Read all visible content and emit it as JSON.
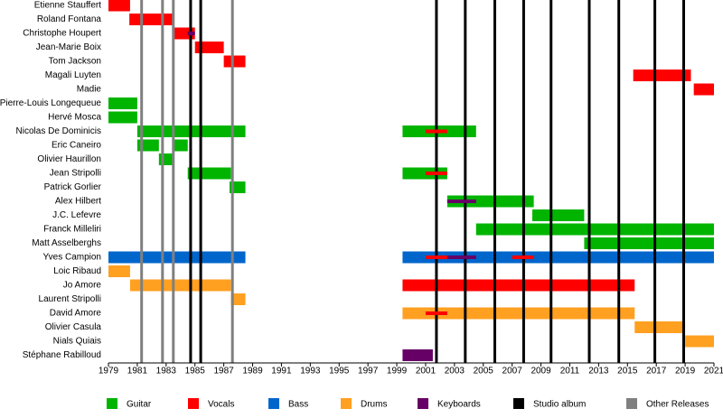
{
  "chart_data": {
    "type": "timeline",
    "xlim": [
      1979,
      2021
    ],
    "xticks": [
      1979,
      1981,
      1983,
      1985,
      1987,
      1989,
      1991,
      1993,
      1995,
      1997,
      1999,
      2001,
      2003,
      2005,
      2007,
      2009,
      2011,
      2013,
      2015,
      2017,
      2019,
      2021
    ],
    "legend": [
      {
        "name": "Guitar",
        "color": "#00b400"
      },
      {
        "name": "Vocals",
        "color": "#ff0000"
      },
      {
        "name": "Bass",
        "color": "#0066cc"
      },
      {
        "name": "Drums",
        "color": "#ffa020"
      },
      {
        "name": "Keyboards",
        "color": "#660066"
      },
      {
        "name": "Studio album",
        "color": "#000000"
      },
      {
        "name": "Other Releases",
        "color": "#808080"
      }
    ],
    "studio_albums": [
      1984.7,
      1985.4,
      2001.75,
      2003.75,
      2005.8,
      2007.8,
      2009.7,
      2012.35,
      2014.4,
      2016.9,
      2018.9
    ],
    "other_releases": [
      1981.3,
      1982.75,
      1983.5,
      1987.6
    ],
    "members": [
      {
        "name": "Etienne Stauffert",
        "bars": [
          {
            "role": 1,
            "start": 1979,
            "end": 1980.5
          }
        ]
      },
      {
        "name": "Roland Fontana",
        "bars": [
          {
            "role": 1,
            "start": 1980.45,
            "end": 1983.5
          }
        ]
      },
      {
        "name": "Christophe Houpert",
        "bars": [
          {
            "role": 1,
            "start": 1983.45,
            "end": 1985
          }
        ],
        "secondary": [
          {
            "role": 4,
            "start": 1984.5,
            "end": 1985
          }
        ]
      },
      {
        "name": "Jean-Marie Boix",
        "bars": [
          {
            "role": 1,
            "start": 1985,
            "end": 1987
          }
        ]
      },
      {
        "name": "Tom Jackson",
        "bars": [
          {
            "role": 1,
            "start": 1987,
            "end": 1988.5
          }
        ]
      },
      {
        "name": "Magali Luyten",
        "bars": [
          {
            "role": 1,
            "start": 2015.4,
            "end": 2019.4
          }
        ]
      },
      {
        "name": "Madie",
        "bars": [
          {
            "role": 1,
            "start": 2019.6,
            "end": 2021
          }
        ]
      },
      {
        "name": "Pierre-Louis Longequeue",
        "bars": [
          {
            "role": 0,
            "start": 1979,
            "end": 1981
          }
        ]
      },
      {
        "name": "Hervé Mosca",
        "bars": [
          {
            "role": 0,
            "start": 1979,
            "end": 1981
          }
        ]
      },
      {
        "name": "Nicolas De Dominicis",
        "bars": [
          {
            "role": 0,
            "start": 1981,
            "end": 1988.5
          },
          {
            "role": 0,
            "start": 1999.4,
            "end": 2004.5
          }
        ],
        "secondary": [
          {
            "role": 1,
            "start": 2001,
            "end": 2002.5
          }
        ]
      },
      {
        "name": "Eric Caneiro",
        "bars": [
          {
            "role": 0,
            "start": 1981,
            "end": 1982.5
          },
          {
            "role": 0,
            "start": 1983.5,
            "end": 1984.5
          }
        ]
      },
      {
        "name": "Olivier Haurillon",
        "bars": [
          {
            "role": 0,
            "start": 1982.5,
            "end": 1983.5
          }
        ]
      },
      {
        "name": "Jean Stripolli",
        "bars": [
          {
            "role": 0,
            "start": 1984.5,
            "end": 1987.5
          },
          {
            "role": 0,
            "start": 1999.4,
            "end": 2002.5
          }
        ],
        "secondary": [
          {
            "role": 1,
            "start": 2001,
            "end": 2002.5
          }
        ]
      },
      {
        "name": "Patrick Gorlier",
        "bars": [
          {
            "role": 0,
            "start": 1987.4,
            "end": 1988.5
          }
        ]
      },
      {
        "name": "Alex Hilbert",
        "bars": [
          {
            "role": 0,
            "start": 2002.5,
            "end": 2008.5
          }
        ],
        "secondary": [
          {
            "role": 4,
            "start": 2002.5,
            "end": 2004.5
          }
        ]
      },
      {
        "name": "J.C. Lefevre",
        "bars": [
          {
            "role": 0,
            "start": 2008.4,
            "end": 2012
          }
        ]
      },
      {
        "name": "Franck Milleliri",
        "bars": [
          {
            "role": 0,
            "start": 2004.5,
            "end": 2021
          }
        ]
      },
      {
        "name": "Matt Asselberghs",
        "bars": [
          {
            "role": 0,
            "start": 2012,
            "end": 2021
          }
        ]
      },
      {
        "name": "Yves Campion",
        "bars": [
          {
            "role": 2,
            "start": 1979,
            "end": 1988.5
          },
          {
            "role": 2,
            "start": 1999.4,
            "end": 2021
          }
        ],
        "secondary": [
          {
            "role": 1,
            "start": 2001,
            "end": 2002.5
          },
          {
            "role": 4,
            "start": 2002.5,
            "end": 2004.5
          },
          {
            "role": 1,
            "start": 2007,
            "end": 2008.5
          }
        ]
      },
      {
        "name": "Loic Ribaud",
        "bars": [
          {
            "role": 3,
            "start": 1979,
            "end": 1980.5
          }
        ]
      },
      {
        "name": "Jo Amore",
        "bars": [
          {
            "role": 3,
            "start": 1980.5,
            "end": 1987.5
          },
          {
            "role": 1,
            "start": 1999.4,
            "end": 2015.5
          }
        ]
      },
      {
        "name": "Laurent Stripolli",
        "bars": [
          {
            "role": 3,
            "start": 1987.5,
            "end": 1988.5
          }
        ]
      },
      {
        "name": "David Amore",
        "bars": [
          {
            "role": 3,
            "start": 1999.4,
            "end": 2015.5
          }
        ],
        "secondary": [
          {
            "role": 1,
            "start": 2001,
            "end": 2002.5
          }
        ]
      },
      {
        "name": "Olivier Casula",
        "bars": [
          {
            "role": 3,
            "start": 2015.5,
            "end": 2019
          }
        ]
      },
      {
        "name": "Nials Quiais",
        "bars": [
          {
            "role": 3,
            "start": 2019,
            "end": 2021
          }
        ]
      },
      {
        "name": "Stéphane Rabilloud",
        "bars": [
          {
            "role": 4,
            "start": 1999.4,
            "end": 2001.5
          }
        ]
      }
    ]
  }
}
